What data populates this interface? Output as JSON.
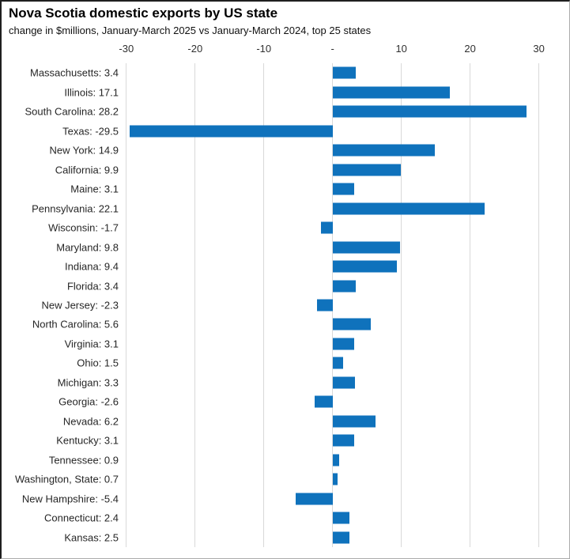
{
  "title": "Nova Scotia domestic exports by US state",
  "subtitle": "change in $millions, January-March 2025 vs January-March 2024, top 25 states",
  "chart_data": {
    "type": "bar",
    "orientation": "horizontal",
    "title": "Nova Scotia domestic exports by US state",
    "subtitle": "change in $millions, January-March 2025 vs January-March 2024, top 25 states",
    "categories": [
      "Massachusetts",
      "Illinois",
      "South Carolina",
      "Texas",
      "New York",
      "California",
      "Maine",
      "Pennsylvania",
      "Wisconsin",
      "Maryland",
      "Indiana",
      "Florida",
      "New Jersey",
      "North Carolina",
      "Virginia",
      "Ohio",
      "Michigan",
      "Georgia",
      "Nevada",
      "Kentucky",
      "Tennessee",
      "Washington, State",
      "New Hampshire",
      "Connecticut",
      "Kansas"
    ],
    "values": [
      3.4,
      17.1,
      28.2,
      -29.5,
      14.9,
      9.9,
      3.1,
      22.1,
      -1.7,
      9.8,
      9.4,
      3.4,
      -2.3,
      5.6,
      3.1,
      1.5,
      3.3,
      -2.6,
      6.2,
      3.1,
      0.9,
      0.7,
      -5.4,
      2.4,
      2.5
    ],
    "row_labels": [
      "Massachusetts: 3.4",
      "Illinois: 17.1",
      "South Carolina: 28.2",
      "Texas: -29.5",
      "New York: 14.9",
      "California: 9.9",
      "Maine: 3.1",
      "Pennsylvania: 22.1",
      "Wisconsin: -1.7",
      "Maryland: 9.8",
      "Indiana: 9.4",
      "Florida: 3.4",
      "New Jersey: -2.3",
      "North Carolina: 5.6",
      "Virginia: 3.1",
      "Ohio: 1.5",
      "Michigan: 3.3",
      "Georgia: -2.6",
      "Nevada: 6.2",
      "Kentucky: 3.1",
      "Tennessee: 0.9",
      "Washington, State: 0.7",
      "New Hampshire: -5.4",
      "Connecticut: 2.4",
      "Kansas: 2.5"
    ],
    "xlabel": "",
    "ylabel": "",
    "xlim": [
      -30.9,
      34.3
    ],
    "tick_values": [
      -30,
      -20,
      -10,
      0,
      10,
      20,
      30
    ],
    "tick_labels": [
      "-30",
      "-20",
      "-10",
      "-",
      "10",
      "20",
      "30"
    ],
    "zero_tick_label": "-",
    "grid": "vertical",
    "legend": "none",
    "bar_color": "#0F72BC",
    "gridline_color": "#D9D9D9",
    "text_color": "#262626"
  }
}
